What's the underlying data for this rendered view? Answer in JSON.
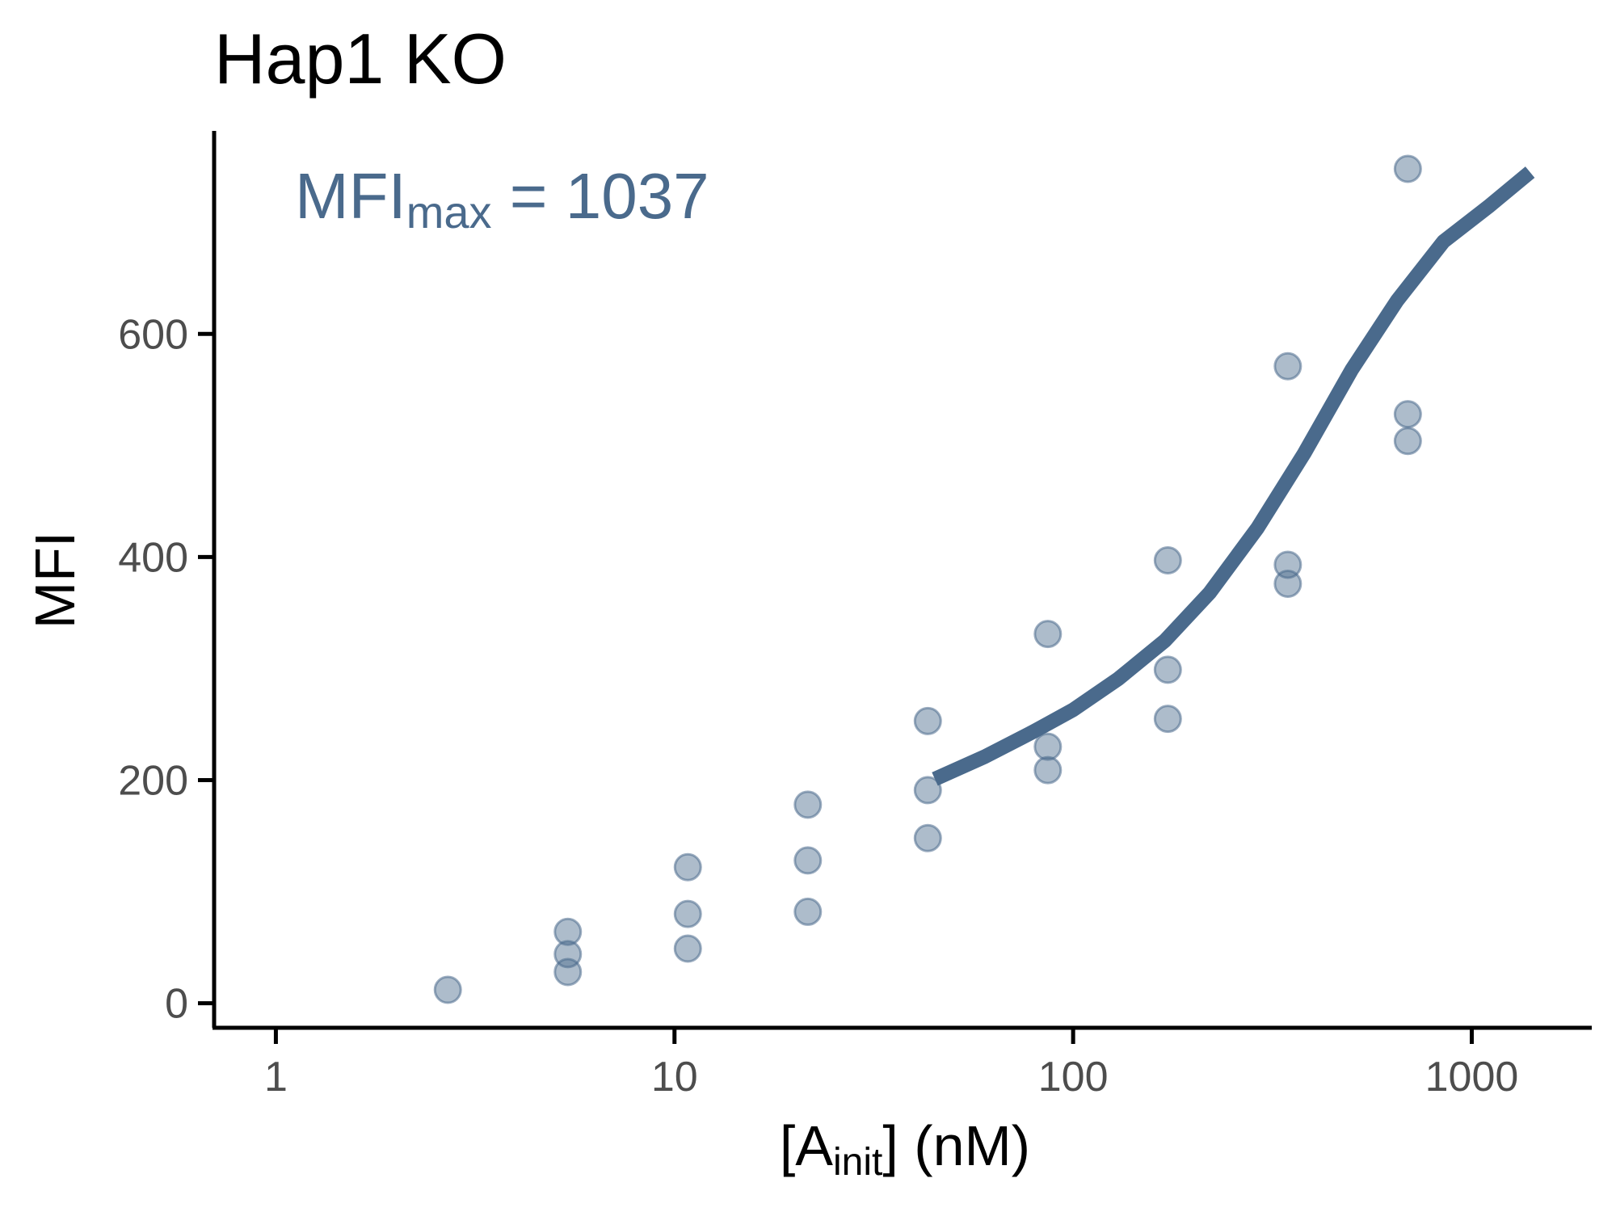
{
  "chart_data": {
    "type": "scatter",
    "title": "Hap1 KO",
    "xlabel": {
      "main": "[A",
      "sub": "init",
      "end": "] (nM)"
    },
    "ylabel": "MFI",
    "x_scale": "log10",
    "xlim": [
      0.7,
      2000
    ],
    "ylim": [
      -22,
      782
    ],
    "x_ticks": [
      1,
      10,
      100,
      1000
    ],
    "x_tick_labels": [
      "1",
      "10",
      "100",
      "1000"
    ],
    "y_ticks": [
      0,
      200,
      400,
      600
    ],
    "y_tick_labels": [
      "0",
      "200",
      "400",
      "600"
    ],
    "grid": false,
    "legend": "none",
    "annotation": {
      "main": "MFI",
      "sub": "max",
      "rest": " = 1037"
    },
    "colors": {
      "points": "#4a6a8c",
      "line": "#4a6a8c",
      "annotation": "#4a6a8c"
    },
    "points": [
      {
        "x": 2.7,
        "y": 12
      },
      {
        "x": 5.4,
        "y": 28
      },
      {
        "x": 5.4,
        "y": 44
      },
      {
        "x": 5.4,
        "y": 64
      },
      {
        "x": 10.8,
        "y": 49
      },
      {
        "x": 10.8,
        "y": 80
      },
      {
        "x": 10.8,
        "y": 122
      },
      {
        "x": 21.6,
        "y": 82
      },
      {
        "x": 21.6,
        "y": 128
      },
      {
        "x": 21.6,
        "y": 178
      },
      {
        "x": 43.2,
        "y": 148
      },
      {
        "x": 43.2,
        "y": 191
      },
      {
        "x": 43.2,
        "y": 253
      },
      {
        "x": 86.4,
        "y": 209
      },
      {
        "x": 86.4,
        "y": 230
      },
      {
        "x": 86.4,
        "y": 331
      },
      {
        "x": 172.8,
        "y": 255
      },
      {
        "x": 172.8,
        "y": 299
      },
      {
        "x": 172.8,
        "y": 397
      },
      {
        "x": 345.6,
        "y": 376
      },
      {
        "x": 345.6,
        "y": 393
      },
      {
        "x": 345.6,
        "y": 571
      },
      {
        "x": 691.2,
        "y": 504
      },
      {
        "x": 691.2,
        "y": 528
      },
      {
        "x": 691.2,
        "y": 748
      }
    ],
    "fit_line": {
      "x": [
        45,
        60,
        80,
        100,
        130,
        170,
        220,
        290,
        380,
        500,
        650,
        850,
        1100,
        1400
      ],
      "y": [
        201,
        221,
        244,
        263,
        291,
        325,
        368,
        426,
        493,
        568,
        630,
        683,
        714,
        745
      ]
    }
  }
}
